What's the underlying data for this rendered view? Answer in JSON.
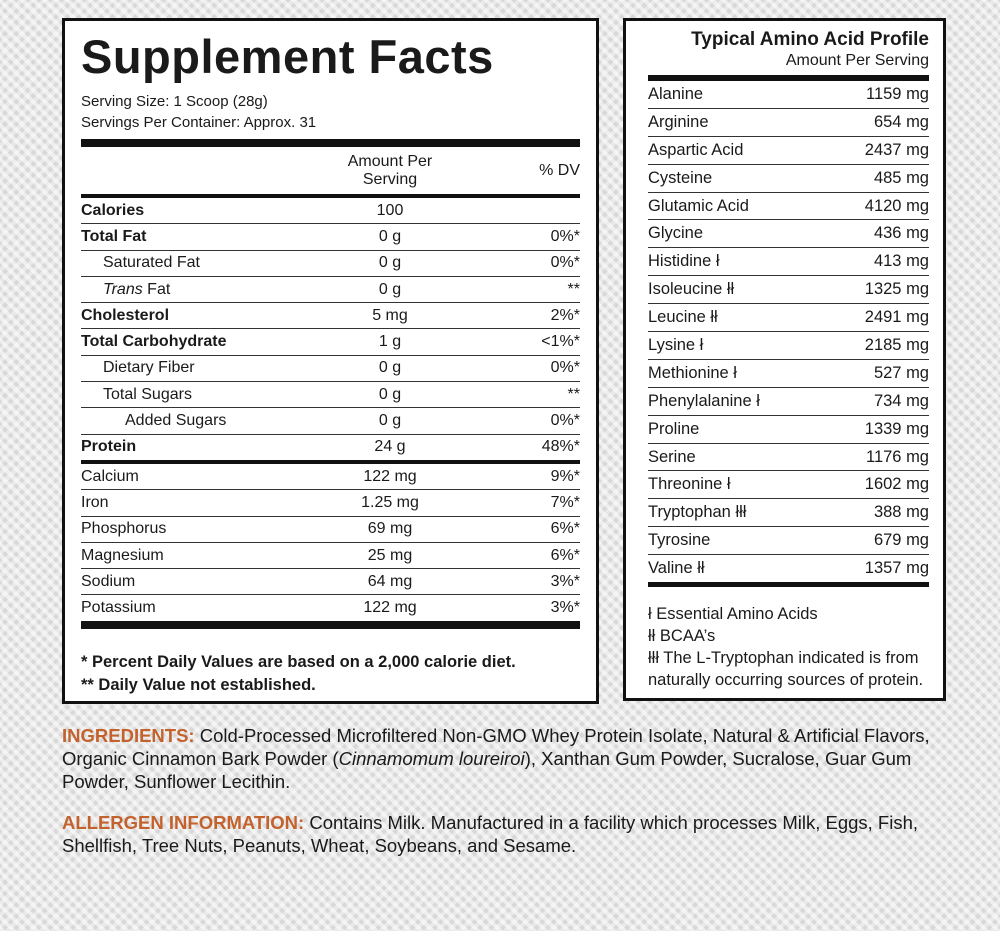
{
  "supplement_facts": {
    "title": "Supplement Facts",
    "serving_size": "Serving Size: 1 Scoop (28g)",
    "servings_per_container": "Servings Per Container: Approx. 31",
    "header": {
      "amount": "Amount Per Serving",
      "dv": "% DV"
    },
    "nutrients": [
      {
        "name": "Calories",
        "amount": "100",
        "bold": true,
        "indent": 0
      },
      {
        "name": "Total Fat",
        "amount": "0 g",
        "dv": "0%*",
        "bold": true,
        "indent": 0
      },
      {
        "name": "Saturated Fat",
        "amount": "0 g",
        "dv": "0%*",
        "bold": false,
        "indent": 1
      },
      {
        "italic": "Trans",
        "name": "Fat",
        "amount": "0 g",
        "dv": "**",
        "bold": false,
        "indent": 1
      },
      {
        "name": "Cholesterol",
        "amount": "5 mg",
        "dv": "2%*",
        "bold": true,
        "indent": 0
      },
      {
        "name": "Total Carbohydrate",
        "amount": "1 g",
        "dv": "<1%*",
        "bold": true,
        "indent": 0
      },
      {
        "name": "Dietary Fiber",
        "amount": "0 g",
        "dv": "0%*",
        "bold": false,
        "indent": 1
      },
      {
        "name": "Total Sugars",
        "amount": "0 g",
        "dv": "**",
        "bold": false,
        "indent": 1
      },
      {
        "name": "Added Sugars",
        "amount": "0 g",
        "dv": "0%*",
        "bold": false,
        "indent": 2
      },
      {
        "name": "Protein",
        "amount": "24 g",
        "dv": "48%*",
        "bold": true,
        "indent": 0
      }
    ],
    "minerals": [
      {
        "name": "Calcium",
        "amount": "122 mg",
        "dv": "9%*"
      },
      {
        "name": "Iron",
        "amount": "1.25 mg",
        "dv": "7%*"
      },
      {
        "name": "Phosphorus",
        "amount": "69 mg",
        "dv": "6%*"
      },
      {
        "name": "Magnesium",
        "amount": "25 mg",
        "dv": "6%*"
      },
      {
        "name": "Sodium",
        "amount": "64 mg",
        "dv": "3%*"
      },
      {
        "name": "Potassium",
        "amount": "122 mg",
        "dv": "3%*"
      }
    ],
    "footnotes": [
      "* Percent Daily Values are based on a 2,000 calorie diet.",
      "** Daily Value not established."
    ]
  },
  "amino_profile": {
    "title": "Typical Amino Acid Profile",
    "subtitle": "Amount Per Serving",
    "rows": [
      {
        "name": "Alanine",
        "amount": "1159 mg"
      },
      {
        "name": "Arginine",
        "amount": "654 mg"
      },
      {
        "name": "Aspartic Acid",
        "amount": "2437 mg"
      },
      {
        "name": "Cysteine",
        "amount": "485 mg"
      },
      {
        "name": "Glutamic Acid",
        "amount": "4120 mg"
      },
      {
        "name": "Glycine",
        "amount": "436 mg"
      },
      {
        "name": "Histidine ł",
        "amount": "413 mg"
      },
      {
        "name": "Isoleucine łł",
        "amount": "1325 mg"
      },
      {
        "name": "Leucine łł",
        "amount": "2491 mg"
      },
      {
        "name": "Lysine ł",
        "amount": "2185 mg"
      },
      {
        "name": "Methionine ł",
        "amount": "527 mg"
      },
      {
        "name": "Phenylalanine ł",
        "amount": "734 mg"
      },
      {
        "name": "Proline",
        "amount": "1339 mg"
      },
      {
        "name": "Serine",
        "amount": "1176 mg"
      },
      {
        "name": "Threonine ł",
        "amount": "1602 mg"
      },
      {
        "name": "Tryptophan łłł",
        "amount": "388 mg"
      },
      {
        "name": "Tyrosine",
        "amount": "679 mg"
      },
      {
        "name": "Valine łł",
        "amount": "1357 mg"
      }
    ],
    "footnotes": [
      "ł Essential Amino Acids",
      "łł BCAA’s",
      "łłł The L-Tryptophan indicated is from naturally occurring sources of protein."
    ]
  },
  "ingredients": {
    "label": "INGREDIENTS:",
    "text_before": "Cold-Processed Microfiltered Non-GMO Whey Protein Isolate, Natural & Artificial Flavors, Organic Cinnamon Bark Powder (",
    "italic": "Cinnamomum loureiroi",
    "text_after": "), Xanthan Gum Powder, Sucralose, Guar Gum Powder, Sunflower Lecithin."
  },
  "allergen": {
    "label": "ALLERGEN INFORMATION:",
    "text": "Contains Milk. Manufactured in a facility which processes Milk, Eggs, Fish, Shellfish, Tree Nuts, Peanuts, Wheat, Soybeans, and Sesame."
  }
}
